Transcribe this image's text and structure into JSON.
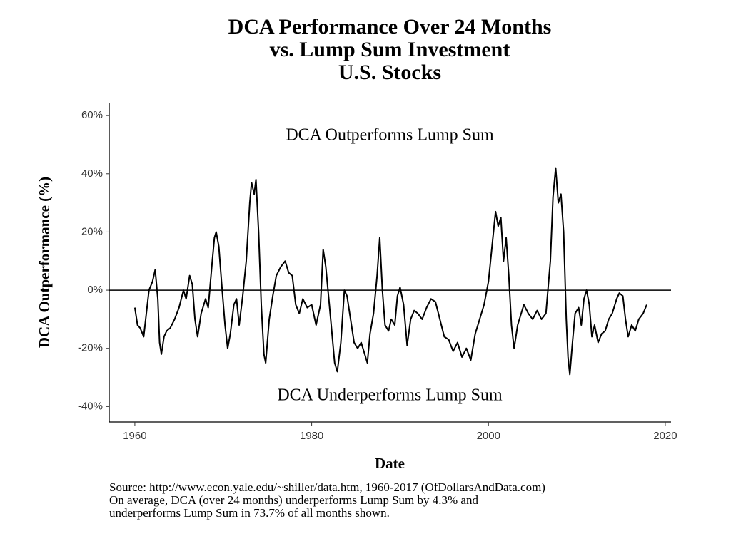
{
  "chart_data": {
    "type": "line",
    "title": [
      "DCA Performance Over 24 Months",
      "vs. Lump Sum Investment",
      "U.S. Stocks"
    ],
    "xlabel": "Date",
    "ylabel": "DCA Outperformance (%)",
    "annotations": [
      "DCA Outperforms Lump Sum",
      "DCA Underperforms Lump Sum"
    ],
    "caption": [
      "Source:  http://www.econ.yale.edu/~shiller/data.htm, 1960-2017 (OfDollarsAndData.com)",
      "On average, DCA (over 24 months) underperforms Lump Sum by 4.3% and",
      "underperforms Lump Sum in 73.7% of all months shown."
    ],
    "color": "#000000",
    "hline": 0,
    "grid": false,
    "xlim": [
      1957.1,
      2020.65
    ],
    "ylim": [
      -45.3,
      64.2
    ],
    "xticks": [
      1960,
      1980,
      2000,
      2020
    ],
    "yticks": [
      {
        "value": -40,
        "label": "-40%"
      },
      {
        "value": -20,
        "label": "-20%"
      },
      {
        "value": 0,
        "label": "0%"
      },
      {
        "value": 20,
        "label": "20%"
      },
      {
        "value": 40,
        "label": "40%"
      },
      {
        "value": 60,
        "label": "60%"
      }
    ],
    "x": [
      1960.0,
      1960.3,
      1960.6,
      1961.0,
      1961.3,
      1961.6,
      1962.0,
      1962.3,
      1962.6,
      1962.8,
      1963.0,
      1963.3,
      1963.6,
      1964.0,
      1964.5,
      1965.0,
      1965.5,
      1965.8,
      1966.2,
      1966.5,
      1966.8,
      1967.1,
      1967.5,
      1968.0,
      1968.3,
      1968.7,
      1969.0,
      1969.2,
      1969.5,
      1969.8,
      1970.2,
      1970.5,
      1970.8,
      1971.2,
      1971.5,
      1971.8,
      1972.2,
      1972.6,
      1973.0,
      1973.2,
      1973.5,
      1973.7,
      1974.0,
      1974.3,
      1974.6,
      1974.8,
      1975.2,
      1975.6,
      1976.0,
      1976.5,
      1977.0,
      1977.4,
      1977.8,
      1978.2,
      1978.6,
      1979.0,
      1979.5,
      1980.0,
      1980.5,
      1981.0,
      1981.3,
      1981.6,
      1982.0,
      1982.3,
      1982.6,
      1982.9,
      1983.3,
      1983.7,
      1984.0,
      1984.4,
      1984.8,
      1985.2,
      1985.6,
      1986.0,
      1986.3,
      1986.6,
      1987.0,
      1987.4,
      1987.7,
      1988.0,
      1988.3,
      1988.7,
      1989.0,
      1989.4,
      1989.7,
      1990.0,
      1990.4,
      1990.8,
      1991.2,
      1991.6,
      1992.0,
      1992.5,
      1993.0,
      1993.5,
      1994.0,
      1994.5,
      1995.0,
      1995.5,
      1996.0,
      1996.5,
      1997.0,
      1997.5,
      1998.0,
      1998.5,
      1999.0,
      1999.5,
      2000.0,
      2000.4,
      2000.8,
      2001.1,
      2001.4,
      2001.7,
      2002.0,
      2002.3,
      2002.6,
      2002.9,
      2003.3,
      2003.7,
      2004.0,
      2004.5,
      2005.0,
      2005.5,
      2006.0,
      2006.5,
      2007.0,
      2007.3,
      2007.6,
      2007.9,
      2008.2,
      2008.5,
      2008.8,
      2009.0,
      2009.2,
      2009.5,
      2009.8,
      2010.2,
      2010.5,
      2010.8,
      2011.1,
      2011.4,
      2011.7,
      2012.0,
      2012.4,
      2012.8,
      2013.2,
      2013.6,
      2014.0,
      2014.5,
      2014.8,
      2015.2,
      2015.5,
      2015.8,
      2016.2,
      2016.6,
      2017.0,
      2017.5,
      2017.9
    ],
    "values": [
      -6,
      -12,
      -13,
      -16,
      -8,
      0,
      3,
      7,
      -3,
      -18,
      -22,
      -16,
      -14,
      -13,
      -10,
      -6,
      0,
      -3,
      5,
      2,
      -10,
      -16,
      -8,
      -3,
      -6,
      8,
      18,
      20,
      15,
      3,
      -12,
      -20,
      -15,
      -5,
      -3,
      -12,
      -2,
      10,
      30,
      37,
      33,
      38,
      20,
      -5,
      -22,
      -25,
      -10,
      -2,
      5,
      8,
      10,
      6,
      5,
      -5,
      -8,
      -3,
      -6,
      -5,
      -12,
      -5,
      14,
      8,
      -5,
      -15,
      -25,
      -28,
      -18,
      0,
      -2,
      -10,
      -18,
      -20,
      -18,
      -22,
      -25,
      -15,
      -8,
      5,
      18,
      0,
      -12,
      -14,
      -10,
      -12,
      -2,
      1,
      -5,
      -19,
      -10,
      -7,
      -8,
      -10,
      -6,
      -3,
      -4,
      -10,
      -16,
      -17,
      -21,
      -18,
      -23,
      -20,
      -24,
      -15,
      -10,
      -5,
      3,
      15,
      27,
      22,
      25,
      10,
      18,
      5,
      -12,
      -20,
      -12,
      -8,
      -5,
      -8,
      -10,
      -7,
      -10,
      -8,
      10,
      32,
      42,
      30,
      33,
      20,
      -10,
      -23,
      -29,
      -18,
      -8,
      -6,
      -12,
      -3,
      0,
      -5,
      -16,
      -12,
      -18,
      -15,
      -14,
      -10,
      -8,
      -3,
      -1,
      -2,
      -10,
      -16,
      -12,
      -14,
      -10,
      -8,
      -5
    ]
  }
}
